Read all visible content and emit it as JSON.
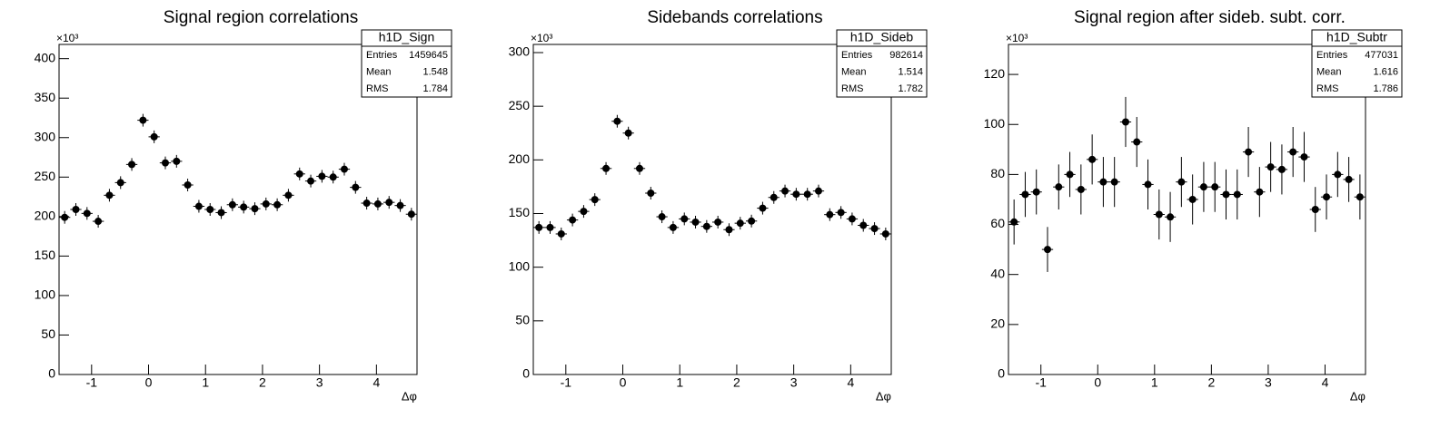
{
  "chart_data": [
    {
      "type": "histogram",
      "title": "Signal region correlations",
      "x_label": "Δφ",
      "y_multiplier": "×10³",
      "bins": [
        -1.571,
        -1.374,
        -1.178,
        -0.982,
        -0.785,
        -0.589,
        -0.393,
        -0.196,
        0,
        0.196,
        0.393,
        0.589,
        0.785,
        0.982,
        1.178,
        1.374,
        1.571,
        1.767,
        1.963,
        2.16,
        2.356,
        2.553,
        2.749,
        2.945,
        3.142,
        3.338,
        3.534,
        3.731,
        3.927,
        4.123,
        4.32,
        4.516,
        4.712
      ],
      "values": [
        199,
        209,
        204,
        194,
        227,
        243,
        266,
        322,
        301,
        268,
        270,
        240,
        213,
        209,
        205,
        215,
        212,
        210,
        216,
        215,
        227,
        254,
        245,
        251,
        250,
        260,
        237,
        217,
        216,
        218,
        214,
        203
      ],
      "xlim": [
        -1.571,
        4.712
      ],
      "xticks": [
        -1,
        0,
        1,
        2,
        3,
        4
      ],
      "ylim": [
        0,
        418
      ],
      "yticks": [
        0,
        50,
        100,
        150,
        200,
        250,
        300,
        350,
        400
      ],
      "color": "#000000",
      "stats": {
        "name": "h1D_Sign",
        "rows": [
          {
            "label": "Entries",
            "value": 1459645
          },
          {
            "label": "Mean",
            "value": 1.548
          },
          {
            "label": "RMS",
            "value": 1.784
          }
        ]
      }
    },
    {
      "type": "histogram",
      "title": "Sidebands correlations",
      "x_label": "Δφ",
      "y_multiplier": "×10³",
      "bins": [
        -1.571,
        -1.374,
        -1.178,
        -0.982,
        -0.785,
        -0.589,
        -0.393,
        -0.196,
        0,
        0.196,
        0.393,
        0.589,
        0.785,
        0.982,
        1.178,
        1.374,
        1.571,
        1.767,
        1.963,
        2.16,
        2.356,
        2.553,
        2.749,
        2.945,
        3.142,
        3.338,
        3.534,
        3.731,
        3.927,
        4.123,
        4.32,
        4.516,
        4.712
      ],
      "values": [
        137,
        137,
        131,
        144,
        152,
        163,
        192,
        236,
        225,
        192,
        169,
        147,
        137,
        145,
        142,
        138,
        142,
        135,
        141,
        143,
        155,
        165,
        171,
        168,
        168,
        171,
        149,
        151,
        145,
        139,
        136,
        131
      ],
      "xlim": [
        -1.571,
        4.712
      ],
      "xticks": [
        -1,
        0,
        1,
        2,
        3,
        4
      ],
      "ylim": [
        0,
        307.6
      ],
      "yticks": [
        0,
        50,
        100,
        150,
        200,
        250,
        300
      ],
      "color": "#000000",
      "stats": {
        "name": "h1D_Sideb",
        "rows": [
          {
            "label": "Entries",
            "value": 982614
          },
          {
            "label": "Mean",
            "value": 1.514
          },
          {
            "label": "RMS",
            "value": 1.782
          }
        ]
      }
    },
    {
      "type": "histogram",
      "title": "Signal region after sideb. subt. corr.",
      "x_label": "Δφ",
      "y_multiplier": "×10³",
      "bins": [
        -1.571,
        -1.374,
        -1.178,
        -0.982,
        -0.785,
        -0.589,
        -0.393,
        -0.196,
        0,
        0.196,
        0.393,
        0.589,
        0.785,
        0.982,
        1.178,
        1.374,
        1.571,
        1.767,
        1.963,
        2.16,
        2.356,
        2.553,
        2.749,
        2.945,
        3.142,
        3.338,
        3.534,
        3.731,
        3.927,
        4.123,
        4.32,
        4.516,
        4.712
      ],
      "values": [
        61,
        72,
        73,
        50,
        75,
        80,
        74,
        86,
        77,
        77,
        101,
        93,
        76,
        64,
        63,
        77,
        70,
        75,
        75,
        72,
        72,
        89,
        73,
        83,
        82,
        89,
        87,
        66,
        71,
        80,
        78,
        71
      ],
      "errors": [
        9,
        9,
        9,
        9,
        9,
        9,
        10,
        10,
        10,
        10,
        10,
        10,
        10,
        10,
        10,
        10,
        10,
        10,
        10,
        10,
        10,
        10,
        10,
        10,
        10,
        10,
        10,
        9,
        9,
        9,
        9,
        9
      ],
      "xlim": [
        -1.571,
        4.712
      ],
      "xticks": [
        -1,
        0,
        1,
        2,
        3,
        4
      ],
      "ylim": [
        0,
        132
      ],
      "yticks": [
        0,
        20,
        40,
        60,
        80,
        100,
        120
      ],
      "color": "#000000",
      "stats": {
        "name": "h1D_Subtr",
        "rows": [
          {
            "label": "Entries",
            "value": 477031
          },
          {
            "label": "Mean",
            "value": 1.616
          },
          {
            "label": "RMS",
            "value": 1.786
          }
        ]
      }
    }
  ]
}
